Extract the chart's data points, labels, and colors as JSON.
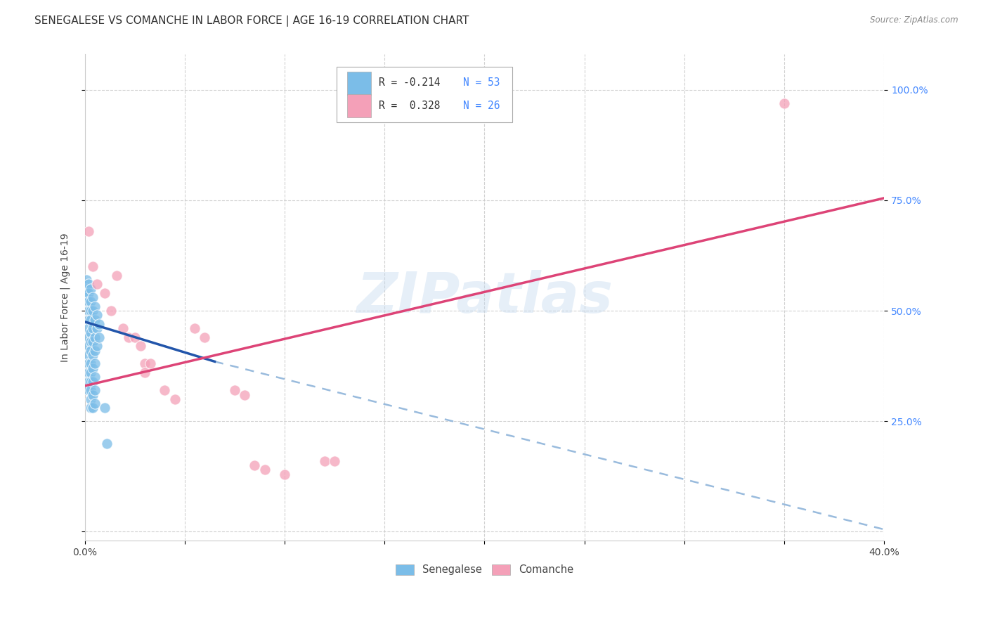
{
  "title": "SENEGALESE VS COMANCHE IN LABOR FORCE | AGE 16-19 CORRELATION CHART",
  "source": "Source: ZipAtlas.com",
  "ylabel": "In Labor Force | Age 16-19",
  "xlim": [
    0.0,
    0.4
  ],
  "ylim": [
    -0.02,
    1.08
  ],
  "watermark": "ZIPatlas",
  "blue_color": "#7bbde8",
  "pink_color": "#f4a0b8",
  "blue_line_color": "#2255aa",
  "pink_line_color": "#dd4477",
  "blue_dashed_color": "#99bbdd",
  "grid_color": "#cccccc",
  "background_color": "#ffffff",
  "blue_scatter": [
    [
      0.001,
      0.57
    ],
    [
      0.001,
      0.55
    ],
    [
      0.001,
      0.53
    ],
    [
      0.002,
      0.56
    ],
    [
      0.002,
      0.54
    ],
    [
      0.002,
      0.52
    ],
    [
      0.002,
      0.5
    ],
    [
      0.002,
      0.48
    ],
    [
      0.002,
      0.46
    ],
    [
      0.002,
      0.44
    ],
    [
      0.002,
      0.42
    ],
    [
      0.002,
      0.4
    ],
    [
      0.002,
      0.38
    ],
    [
      0.002,
      0.36
    ],
    [
      0.002,
      0.34
    ],
    [
      0.002,
      0.32
    ],
    [
      0.003,
      0.55
    ],
    [
      0.003,
      0.52
    ],
    [
      0.003,
      0.5
    ],
    [
      0.003,
      0.48
    ],
    [
      0.003,
      0.45
    ],
    [
      0.003,
      0.43
    ],
    [
      0.003,
      0.41
    ],
    [
      0.003,
      0.38
    ],
    [
      0.003,
      0.36
    ],
    [
      0.003,
      0.34
    ],
    [
      0.003,
      0.32
    ],
    [
      0.003,
      0.3
    ],
    [
      0.003,
      0.28
    ],
    [
      0.004,
      0.53
    ],
    [
      0.004,
      0.5
    ],
    [
      0.004,
      0.46
    ],
    [
      0.004,
      0.43
    ],
    [
      0.004,
      0.4
    ],
    [
      0.004,
      0.37
    ],
    [
      0.004,
      0.34
    ],
    [
      0.004,
      0.31
    ],
    [
      0.004,
      0.28
    ],
    [
      0.005,
      0.51
    ],
    [
      0.005,
      0.48
    ],
    [
      0.005,
      0.44
    ],
    [
      0.005,
      0.41
    ],
    [
      0.005,
      0.38
    ],
    [
      0.005,
      0.35
    ],
    [
      0.005,
      0.32
    ],
    [
      0.005,
      0.29
    ],
    [
      0.006,
      0.49
    ],
    [
      0.006,
      0.46
    ],
    [
      0.006,
      0.42
    ],
    [
      0.007,
      0.47
    ],
    [
      0.007,
      0.44
    ],
    [
      0.01,
      0.28
    ],
    [
      0.011,
      0.2
    ]
  ],
  "pink_scatter": [
    [
      0.002,
      0.68
    ],
    [
      0.004,
      0.6
    ],
    [
      0.006,
      0.56
    ],
    [
      0.01,
      0.54
    ],
    [
      0.013,
      0.5
    ],
    [
      0.016,
      0.58
    ],
    [
      0.019,
      0.46
    ],
    [
      0.022,
      0.44
    ],
    [
      0.025,
      0.44
    ],
    [
      0.028,
      0.42
    ],
    [
      0.03,
      0.38
    ],
    [
      0.03,
      0.36
    ],
    [
      0.033,
      0.38
    ],
    [
      0.04,
      0.32
    ],
    [
      0.045,
      0.3
    ],
    [
      0.055,
      0.46
    ],
    [
      0.06,
      0.44
    ],
    [
      0.075,
      0.32
    ],
    [
      0.08,
      0.31
    ],
    [
      0.085,
      0.15
    ],
    [
      0.09,
      0.14
    ],
    [
      0.1,
      0.13
    ],
    [
      0.12,
      0.16
    ],
    [
      0.125,
      0.16
    ],
    [
      0.35,
      0.97
    ]
  ],
  "blue_trendline_solid": [
    [
      0.0,
      0.475
    ],
    [
      0.065,
      0.385
    ]
  ],
  "blue_trendline_dashed": [
    [
      0.065,
      0.385
    ],
    [
      0.4,
      0.005
    ]
  ],
  "pink_trendline": [
    [
      0.0,
      0.33
    ],
    [
      0.4,
      0.755
    ]
  ],
  "title_fontsize": 11,
  "axis_label_fontsize": 10,
  "tick_fontsize": 10,
  "legend_fontsize": 10.5
}
